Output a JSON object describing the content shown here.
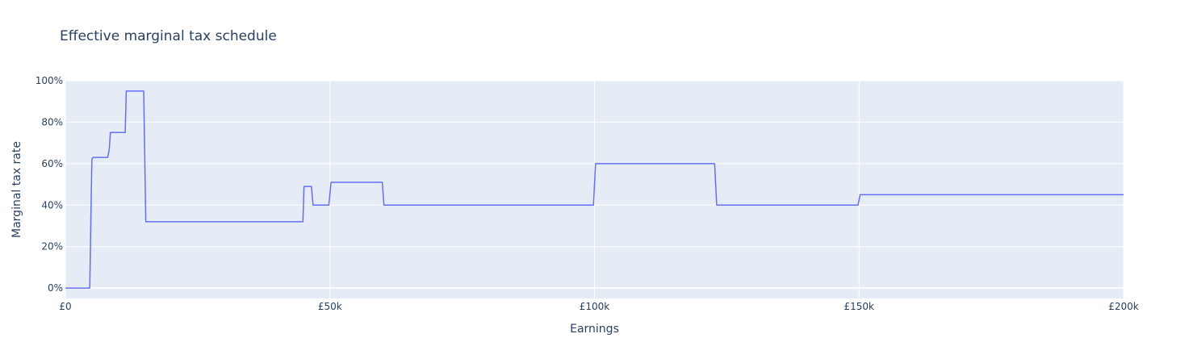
{
  "chart_data": {
    "type": "line",
    "title": "Effective marginal tax schedule",
    "xlabel": "Earnings",
    "ylabel": "Marginal tax rate",
    "xlim": [
      0,
      200000
    ],
    "ylim": [
      -0.05,
      1.0
    ],
    "x_ticks": [
      {
        "value": 0,
        "label": "£0"
      },
      {
        "value": 50000,
        "label": "£50k"
      },
      {
        "value": 100000,
        "label": "£100k"
      },
      {
        "value": 150000,
        "label": "£150k"
      },
      {
        "value": 200000,
        "label": "£200k"
      }
    ],
    "y_ticks": [
      {
        "value": 0,
        "label": "0%"
      },
      {
        "value": 0.2,
        "label": "20%"
      },
      {
        "value": 0.4,
        "label": "40%"
      },
      {
        "value": 0.6,
        "label": "60%"
      },
      {
        "value": 0.8,
        "label": "80%"
      },
      {
        "value": 1.0,
        "label": "100%"
      }
    ],
    "grid": true,
    "legend": "none",
    "colors": {
      "plot_bg": "#e5ecf6",
      "line": "#636efa",
      "text": "#2a3f5f"
    },
    "series": [
      {
        "x": [
          0,
          4600,
          5000,
          5200,
          8000,
          8300,
          8500,
          11300,
          11500,
          14800,
          15200,
          44900,
          45100,
          46500,
          46800,
          49800,
          50200,
          59900,
          60200,
          99800,
          100200,
          122700,
          123100,
          149800,
          150200,
          200000
        ],
        "y": [
          0,
          0,
          0.62,
          0.63,
          0.63,
          0.67,
          0.75,
          0.75,
          0.95,
          0.95,
          0.32,
          0.32,
          0.49,
          0.49,
          0.4,
          0.4,
          0.51,
          0.51,
          0.4,
          0.4,
          0.6,
          0.6,
          0.4,
          0.4,
          0.45,
          0.45
        ]
      }
    ]
  }
}
